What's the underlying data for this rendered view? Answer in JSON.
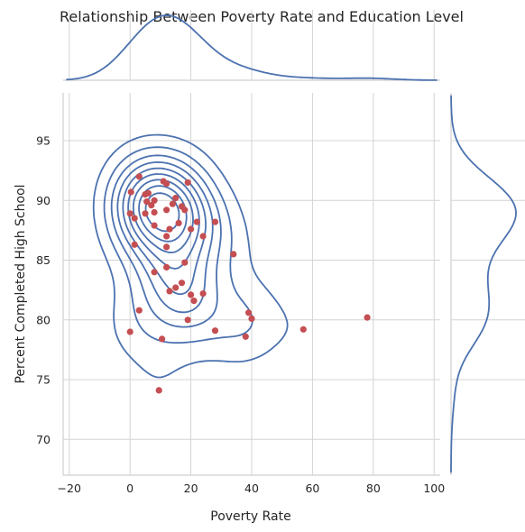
{
  "chart_data": {
    "type": "scatter",
    "title": "Relationship Between Poverty Rate and Education Level",
    "xlabel": "Poverty Rate",
    "ylabel": "Percent Completed High School",
    "xlim": [
      -22,
      102
    ],
    "ylim": [
      67,
      99
    ],
    "xticks": [
      -20,
      0,
      20,
      40,
      60,
      80,
      100
    ],
    "yticks": [
      70,
      75,
      80,
      85,
      90,
      95
    ],
    "grid": true,
    "marginal": "kde",
    "joint_overlay": "kde-contours",
    "colors": {
      "points": "#c44e52",
      "kde": "#4c72b0"
    },
    "points": [
      [
        0.3,
        90.7
      ],
      [
        3,
        92.0
      ],
      [
        5,
        90.5
      ],
      [
        6,
        90.6
      ],
      [
        5.5,
        89.9
      ],
      [
        8,
        90.0
      ],
      [
        7,
        89.6
      ],
      [
        8,
        89.0
      ],
      [
        5,
        88.9
      ],
      [
        0,
        88.9
      ],
      [
        1.5,
        88.5
      ],
      [
        11,
        91.6
      ],
      [
        12,
        91.4
      ],
      [
        15,
        90.2
      ],
      [
        19,
        91.5
      ],
      [
        14,
        89.7
      ],
      [
        12,
        89.2
      ],
      [
        17,
        89.5
      ],
      [
        18,
        89.2
      ],
      [
        28,
        88.2
      ],
      [
        22,
        88.2
      ],
      [
        16,
        88.1
      ],
      [
        8,
        87.9
      ],
      [
        13,
        87.6
      ],
      [
        20,
        87.6
      ],
      [
        12,
        87.0
      ],
      [
        24,
        87.0
      ],
      [
        1.5,
        86.3
      ],
      [
        12,
        86.1
      ],
      [
        34,
        85.5
      ],
      [
        18,
        84.8
      ],
      [
        12,
        84.4
      ],
      [
        8,
        84.0
      ],
      [
        17,
        83.1
      ],
      [
        15,
        82.7
      ],
      [
        13,
        82.4
      ],
      [
        24,
        82.2
      ],
      [
        20,
        82.1
      ],
      [
        21,
        81.6
      ],
      [
        3,
        80.8
      ],
      [
        39,
        80.6
      ],
      [
        40,
        80.1
      ],
      [
        19,
        80.0
      ],
      [
        78,
        80.2
      ],
      [
        57,
        79.2
      ],
      [
        28,
        79.1
      ],
      [
        0,
        79.0
      ],
      [
        38,
        78.6
      ],
      [
        10.5,
        78.4
      ],
      [
        9.5,
        74.1
      ]
    ]
  }
}
